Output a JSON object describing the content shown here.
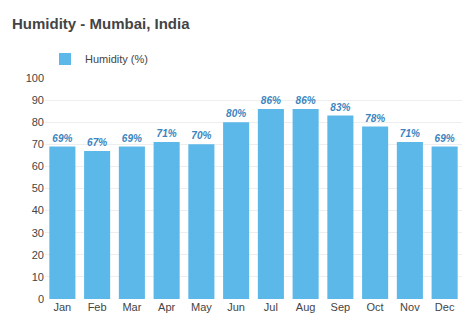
{
  "chart_data": {
    "type": "bar",
    "title": "Humidity - Mumbai, India",
    "categories": [
      "Jan",
      "Feb",
      "Mar",
      "Apr",
      "May",
      "Jun",
      "Jul",
      "Aug",
      "Sep",
      "Oct",
      "Nov",
      "Dec"
    ],
    "series": [
      {
        "name": "Humidity (%)",
        "color": "#5bb8e8",
        "values": [
          69,
          67,
          69,
          71,
          70,
          80,
          86,
          86,
          83,
          78,
          71,
          69
        ],
        "value_labels": [
          "69%",
          "67%",
          "69%",
          "71%",
          "70%",
          "80%",
          "86%",
          "86%",
          "83%",
          "78%",
          "71%",
          "69%"
        ]
      }
    ],
    "ylim": [
      0,
      100
    ],
    "yticks": [
      0,
      10,
      20,
      30,
      40,
      50,
      60,
      70,
      80,
      90,
      100
    ],
    "grid": true,
    "legend": "upper left",
    "data_labels": true
  }
}
